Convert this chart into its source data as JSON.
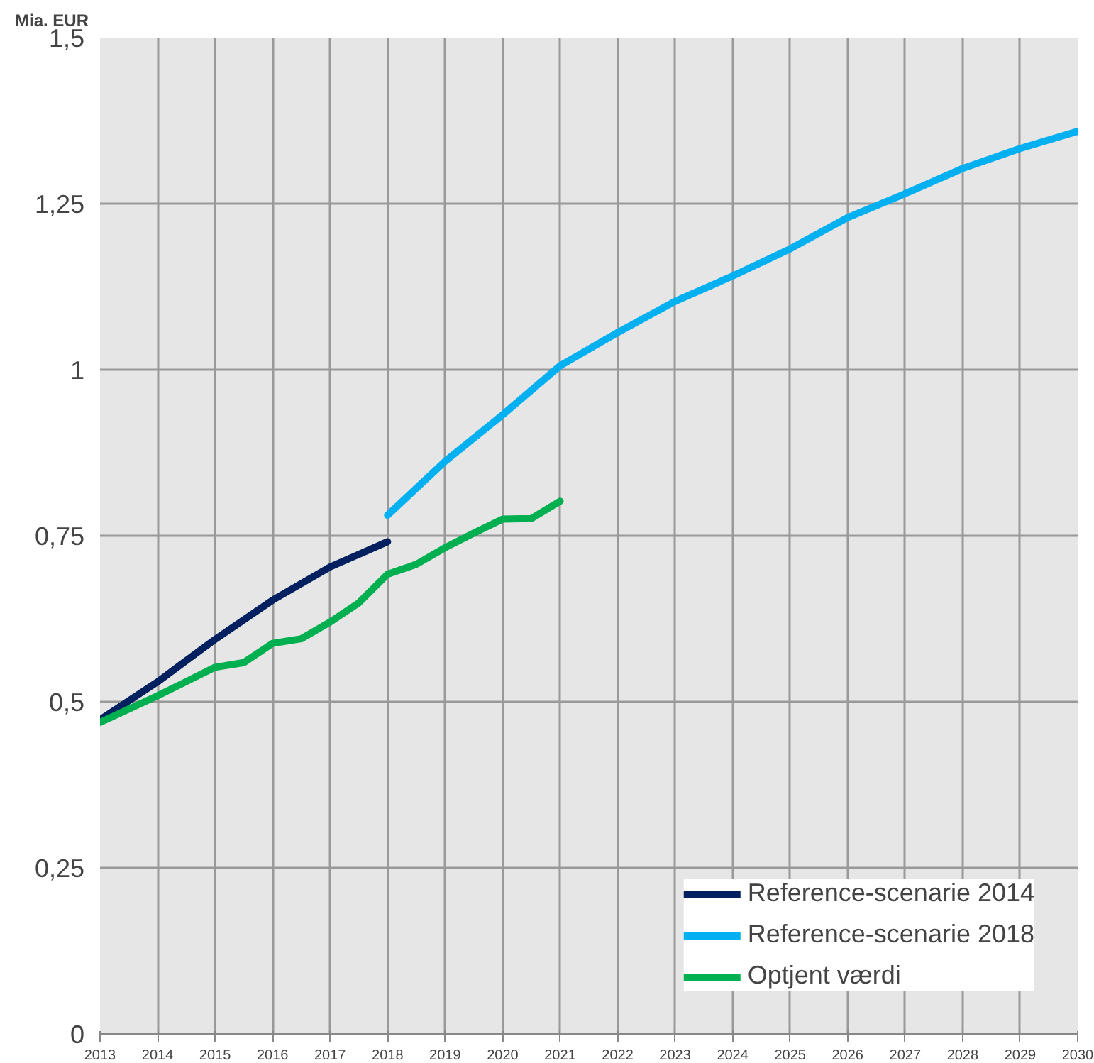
{
  "chart_data": {
    "type": "line",
    "ylabel": "Mia. EUR",
    "xlim": [
      2013,
      2030
    ],
    "xticks": [
      2013,
      2014,
      2015,
      2016,
      2017,
      2018,
      2019,
      2020,
      2021,
      2022,
      2023,
      2024,
      2025,
      2026,
      2027,
      2028,
      2029,
      2030
    ],
    "ylim": [
      0,
      1.5
    ],
    "yticks": [
      0,
      {
        "value": 0.25,
        "label": "0,25"
      },
      {
        "value": 0.5,
        "label": "0,5"
      },
      {
        "value": 0.75,
        "label": "0,75"
      },
      1,
      {
        "value": 1.25,
        "label": "1,25"
      },
      {
        "value": 1.5,
        "label": "1,5"
      }
    ],
    "grid": true,
    "legend": "bottom right",
    "marker": "none",
    "line_style": "solid",
    "series": [
      {
        "name": "Reference-scenarie 2014",
        "color": "#002060",
        "x": [
          2013,
          2014,
          2015,
          2016,
          2017,
          2018
        ],
        "values": [
          0.473,
          0.53,
          0.594,
          0.653,
          0.703,
          0.741
        ]
      },
      {
        "name": "Reference-scenarie 2018",
        "color": "#00b0f0",
        "x": [
          2018,
          2019,
          2020,
          2021,
          2022,
          2023,
          2024,
          2025,
          2026,
          2027,
          2028,
          2029,
          2030
        ],
        "values": [
          0.781,
          0.862,
          0.932,
          1.006,
          1.056,
          1.103,
          1.141,
          1.182,
          1.229,
          1.265,
          1.303,
          1.333,
          1.359
        ]
      },
      {
        "name": "Optjent værdi",
        "color": "#00b050",
        "x": [
          2013,
          2014,
          2015,
          2015.5,
          2016,
          2016.5,
          2017,
          2017.5,
          2018,
          2018.5,
          2019,
          2019.5,
          2020,
          2020.5,
          2021
        ],
        "values": [
          0.469,
          0.509,
          0.552,
          0.559,
          0.588,
          0.595,
          0.62,
          0.649,
          0.692,
          0.707,
          0.732,
          0.754,
          0.775,
          0.776,
          0.802
        ]
      }
    ]
  }
}
